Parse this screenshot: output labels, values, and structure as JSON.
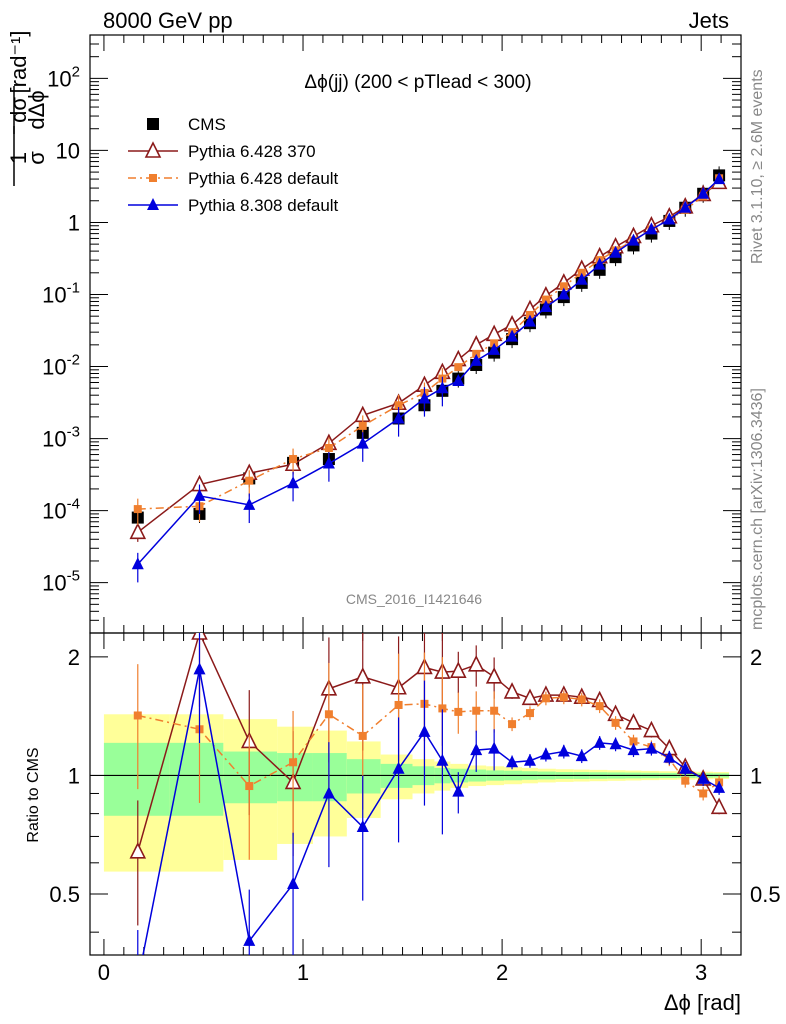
{
  "header": {
    "left": "8000 GeV pp",
    "right": "Jets"
  },
  "side_labels": {
    "rivet": "Rivet 3.1.10, ≥ 2.6M events",
    "mcplots": "mcplots.cern.ch [arXiv:1306.3436]"
  },
  "watermark": "CMS_2016_I1421646",
  "chart_data": {
    "type": "line",
    "title": "Δϕ(jj) (200 < pTlead <  300)",
    "xlabel": "Δϕ [rad]",
    "ylabel_main": "1 dσ / σ dΔϕ [rad⁻¹]",
    "ylabel_ratio": "Ratio to CMS",
    "xlim": [
      -0.07,
      3.2
    ],
    "ylim_main": [
      2e-06,
      400
    ],
    "ylim_ratio": [
      0.35,
      2.3
    ],
    "y_scale": "log",
    "x_ticks": [
      "0",
      "1",
      "2",
      "3"
    ],
    "main_y_ticks": [
      "10^-5",
      "10^-4",
      "10^-3",
      "10^-2",
      "10^-1",
      "1",
      "10",
      "10^2"
    ],
    "ratio_y_ticks": [
      "0.5",
      "1",
      "2"
    ],
    "legend": {
      "position": "top-left"
    },
    "x": [
      0.17,
      0.48,
      0.73,
      0.95,
      1.13,
      1.3,
      1.48,
      1.61,
      1.7,
      1.78,
      1.87,
      1.96,
      2.05,
      2.14,
      2.22,
      2.31,
      2.4,
      2.49,
      2.57,
      2.66,
      2.75,
      2.84,
      2.92,
      3.01,
      3.09
    ],
    "series": [
      {
        "name": "CMS",
        "color": "#000000",
        "marker": "square",
        "values": [
          8e-05,
          9e-05,
          0.00028,
          0.00046,
          0.00052,
          0.0012,
          0.0019,
          0.0029,
          0.0046,
          0.0068,
          0.0105,
          0.0156,
          0.024,
          0.04,
          0.062,
          0.092,
          0.145,
          0.22,
          0.33,
          0.48,
          0.7,
          1.05,
          1.6,
          2.5,
          4.5
        ]
      },
      {
        "name": "Pythia 6.428 370",
        "color": "#8b1a1a",
        "marker": "open-triangle",
        "values": [
          5e-05,
          0.00023,
          0.00033,
          0.00044,
          0.00086,
          0.0021,
          0.0031,
          0.0055,
          0.0083,
          0.0125,
          0.02,
          0.028,
          0.038,
          0.062,
          0.096,
          0.145,
          0.225,
          0.335,
          0.46,
          0.64,
          0.9,
          1.2,
          1.65,
          2.45,
          3.6
        ]
      },
      {
        "name": "Pythia 6.428 default",
        "color": "#f07f2e",
        "marker": "square",
        "values": [
          0.000105,
          0.000115,
          0.00026,
          0.00052,
          0.00074,
          0.0015,
          0.0029,
          0.0043,
          0.0068,
          0.0098,
          0.015,
          0.021,
          0.03,
          0.052,
          0.085,
          0.13,
          0.2,
          0.3,
          0.41,
          0.56,
          0.8,
          1.1,
          1.5,
          2.3,
          4.1
        ]
      },
      {
        "name": "Pythia 8.308 default",
        "color": "#0000dd",
        "marker": "triangle",
        "values": [
          1.8e-05,
          0.00016,
          0.00012,
          0.00024,
          0.00045,
          0.00085,
          0.0019,
          0.0036,
          0.005,
          0.0063,
          0.012,
          0.017,
          0.026,
          0.042,
          0.067,
          0.1,
          0.16,
          0.26,
          0.38,
          0.56,
          0.8,
          1.1,
          1.6,
          2.5,
          4.0
        ]
      }
    ],
    "ratio_series": [
      {
        "name": "Pythia 6.428 370",
        "values": [
          0.64,
          2.3,
          1.22,
          0.96,
          1.66,
          1.78,
          1.67,
          1.88,
          1.83,
          1.84,
          1.91,
          1.78,
          1.63,
          1.57,
          1.6,
          1.6,
          1.58,
          1.55,
          1.43,
          1.36,
          1.3,
          1.17,
          1.05,
          0.98,
          0.83
        ]
      },
      {
        "name": "Pythia 6.428 default",
        "values": [
          1.42,
          1.31,
          0.94,
          1.08,
          1.43,
          1.26,
          1.51,
          1.52,
          1.48,
          1.45,
          1.46,
          1.46,
          1.35,
          1.44,
          1.57,
          1.58,
          1.56,
          1.5,
          1.36,
          1.22,
          1.18,
          1.1,
          0.97,
          0.9,
          0.96
        ]
      },
      {
        "name": "Pythia 8.308 default",
        "values": [
          0.3,
          1.86,
          0.38,
          0.53,
          0.9,
          0.74,
          1.04,
          1.29,
          1.09,
          0.91,
          1.16,
          1.17,
          1.08,
          1.09,
          1.13,
          1.15,
          1.12,
          1.21,
          1.2,
          1.16,
          1.17,
          1.11,
          1.04,
          0.98,
          0.93
        ]
      }
    ],
    "cms_band": {
      "edges": [
        0,
        0.33,
        0.6,
        0.87,
        1.05,
        1.22,
        1.39,
        1.55,
        1.66,
        1.74,
        1.83,
        1.92,
        2.01,
        2.1,
        2.18,
        2.27,
        2.36,
        2.44,
        2.53,
        2.62,
        2.7,
        2.79,
        2.88,
        2.97,
        3.06,
        3.14
      ],
      "inner": [
        0.21,
        0.21,
        0.15,
        0.14,
        0.14,
        0.1,
        0.07,
        0.055,
        0.045,
        0.04,
        0.035,
        0.03,
        0.028,
        0.025,
        0.023,
        0.02,
        0.02,
        0.019,
        0.018,
        0.017,
        0.016,
        0.015,
        0.014,
        0.013,
        0.012
      ],
      "outer": [
        0.43,
        0.43,
        0.39,
        0.33,
        0.3,
        0.22,
        0.13,
        0.1,
        0.085,
        0.07,
        0.06,
        0.055,
        0.05,
        0.045,
        0.04,
        0.037,
        0.035,
        0.033,
        0.031,
        0.029,
        0.027,
        0.025,
        0.024,
        0.022,
        0.02
      ]
    }
  }
}
